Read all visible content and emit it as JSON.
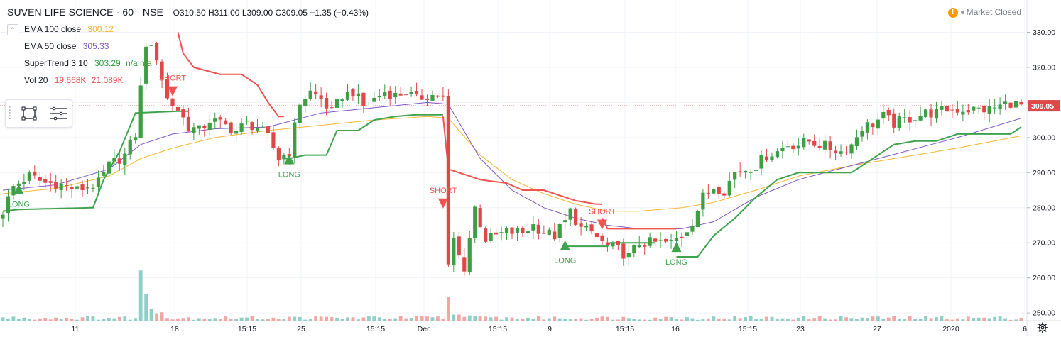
{
  "header": {
    "symbol": "SUVEN LIFE SCIENCE · 60 · NSE",
    "open": "O310.50",
    "high": "H311.00",
    "low": "L309.00",
    "close": "C309.05",
    "change": "−1.35 (−0.43%)",
    "market_status": "Market Closed"
  },
  "indicators": [
    {
      "name": "EMA 100 close",
      "value": "300.12",
      "color": "#f5b632"
    },
    {
      "name": "EMA 50 close",
      "value": "305.33",
      "color": "#7e57c2"
    },
    {
      "name": "SuperTrend 3 10",
      "value": "303.29",
      "extra": "n/a n/a",
      "color": "#2e9e3a"
    },
    {
      "name": "Vol 20",
      "value": "19.668K",
      "value2": "21.089K",
      "color": "#ef5350"
    }
  ],
  "colors": {
    "up": "#26a69a",
    "down": "#ef5350",
    "candle_up": "#3d9e43",
    "candle_down": "#e04848",
    "ema100": "#f5b632",
    "ema50": "#7e57c2",
    "supertrend_long": "#3fa34d",
    "supertrend_short": "#f05350",
    "price_line": "#e04848"
  },
  "chart_data": {
    "type": "candlestick",
    "price_axis": {
      "ticks": [
        "330.00",
        "320.00",
        "310.00",
        "300.00",
        "290.00",
        "280.00",
        "270.00",
        "260.00",
        "250.00"
      ],
      "range": [
        248,
        334
      ]
    },
    "last_price": "309.05",
    "x_ticks": [
      "11",
      "18",
      "15:15",
      "25",
      "15:15",
      "Dec",
      "15:15",
      "9",
      "15:15",
      "16",
      "15:15",
      "23",
      "27",
      "2020",
      "6"
    ],
    "signals": [
      {
        "label": "LONG",
        "type": "long",
        "price": 285.5,
        "bar": 3
      },
      {
        "label": "SHORT",
        "type": "short",
        "price": 313,
        "bar": 32
      },
      {
        "label": "LONG",
        "type": "long",
        "price": 294,
        "bar": 54
      },
      {
        "label": "SHORT",
        "type": "short",
        "price": 281,
        "bar": 83
      },
      {
        "label": "LONG",
        "type": "long",
        "price": 269.5,
        "bar": 106
      },
      {
        "label": "SHORT",
        "type": "short",
        "price": 275,
        "bar": 113
      },
      {
        "label": "LONG",
        "type": "long",
        "price": 269,
        "bar": 127
      }
    ],
    "anchors": {
      "close": [
        [
          0,
          279
        ],
        [
          2,
          286
        ],
        [
          5,
          289
        ],
        [
          8,
          287
        ],
        [
          10,
          287
        ],
        [
          14,
          285
        ],
        [
          18,
          287
        ],
        [
          20,
          292
        ],
        [
          23,
          295
        ],
        [
          25,
          301
        ],
        [
          27,
          327
        ],
        [
          29,
          323
        ],
        [
          31,
          311
        ],
        [
          33,
          308
        ],
        [
          35,
          303
        ],
        [
          37,
          302
        ],
        [
          39,
          305
        ],
        [
          41,
          304
        ],
        [
          44,
          302
        ],
        [
          46,
          304
        ],
        [
          48,
          303
        ],
        [
          50,
          300
        ],
        [
          52,
          294
        ],
        [
          54,
          296
        ],
        [
          56,
          310
        ],
        [
          58,
          313
        ],
        [
          60,
          311
        ],
        [
          62,
          307
        ],
        [
          64,
          312
        ],
        [
          66,
          313
        ],
        [
          68,
          309
        ],
        [
          70,
          311
        ],
        [
          72,
          313
        ],
        [
          74,
          312
        ],
        [
          76,
          313
        ],
        [
          78,
          311
        ],
        [
          80,
          312
        ],
        [
          82,
          312
        ],
        [
          83,
          311
        ],
        [
          84,
          263
        ],
        [
          85,
          271
        ],
        [
          86,
          266
        ],
        [
          87,
          263
        ],
        [
          89,
          280
        ],
        [
          91,
          271
        ],
        [
          95,
          273
        ],
        [
          98,
          273
        ],
        [
          100,
          275
        ],
        [
          102,
          273
        ],
        [
          104,
          272
        ],
        [
          106,
          276
        ],
        [
          107,
          279
        ],
        [
          109,
          274
        ],
        [
          111,
          273
        ],
        [
          113,
          270
        ],
        [
          114,
          269
        ],
        [
          116,
          268
        ],
        [
          118,
          266
        ],
        [
          120,
          270
        ],
        [
          122,
          270
        ],
        [
          124,
          270
        ],
        [
          126,
          270
        ],
        [
          128,
          272
        ],
        [
          130,
          276
        ],
        [
          132,
          283
        ],
        [
          134,
          286
        ],
        [
          136,
          285
        ],
        [
          138,
          290
        ],
        [
          140,
          291
        ],
        [
          142,
          292
        ],
        [
          144,
          295
        ],
        [
          146,
          296
        ],
        [
          148,
          298
        ],
        [
          150,
          298
        ],
        [
          152,
          299
        ],
        [
          154,
          298
        ],
        [
          156,
          297
        ],
        [
          158,
          296
        ],
        [
          160,
          298
        ],
        [
          162,
          303
        ],
        [
          164,
          304
        ],
        [
          166,
          306
        ],
        [
          168,
          304
        ],
        [
          170,
          305
        ],
        [
          172,
          306
        ],
        [
          174,
          307
        ],
        [
          176,
          307
        ],
        [
          178,
          308
        ],
        [
          180,
          308
        ],
        [
          182,
          308
        ],
        [
          184,
          308
        ],
        [
          186,
          308
        ],
        [
          188,
          309
        ],
        [
          190,
          310
        ],
        [
          192,
          309
        ]
      ],
      "ema100": [
        [
          0,
          284
        ],
        [
          10,
          285.5
        ],
        [
          20,
          289
        ],
        [
          26,
          294
        ],
        [
          32,
          297
        ],
        [
          40,
          300
        ],
        [
          50,
          302
        ],
        [
          60,
          303.5
        ],
        [
          70,
          305
        ],
        [
          80,
          306
        ],
        [
          84,
          305.5
        ],
        [
          90,
          295
        ],
        [
          96,
          288
        ],
        [
          102,
          284
        ],
        [
          108,
          281
        ],
        [
          114,
          279
        ],
        [
          120,
          279
        ],
        [
          128,
          280
        ],
        [
          134,
          281.5
        ],
        [
          142,
          285
        ],
        [
          150,
          289
        ],
        [
          160,
          292
        ],
        [
          170,
          294.5
        ],
        [
          180,
          297
        ],
        [
          192,
          300.5
        ]
      ],
      "ema50": [
        [
          0,
          285
        ],
        [
          10,
          286.5
        ],
        [
          20,
          291
        ],
        [
          26,
          298
        ],
        [
          32,
          301
        ],
        [
          40,
          302.5
        ],
        [
          50,
          303
        ],
        [
          60,
          307
        ],
        [
          70,
          308.5
        ],
        [
          80,
          310
        ],
        [
          84,
          309.5
        ],
        [
          90,
          294
        ],
        [
          96,
          285
        ],
        [
          102,
          280
        ],
        [
          108,
          277
        ],
        [
          114,
          275
        ],
        [
          120,
          274
        ],
        [
          128,
          274
        ],
        [
          134,
          276
        ],
        [
          142,
          283
        ],
        [
          150,
          288
        ],
        [
          160,
          292
        ],
        [
          170,
          296
        ],
        [
          180,
          300
        ],
        [
          192,
          305.5
        ]
      ],
      "st_long_1": [
        [
          0,
          279
        ],
        [
          3,
          279.5
        ],
        [
          17,
          280
        ],
        [
          19,
          288
        ],
        [
          22,
          296
        ],
        [
          25,
          307
        ],
        [
          33,
          307.5
        ],
        [
          35,
          307.5
        ]
      ],
      "st_short_1": [
        [
          33,
          330
        ],
        [
          34,
          324
        ],
        [
          36,
          320
        ],
        [
          41,
          318
        ],
        [
          45,
          318
        ],
        [
          48,
          315
        ],
        [
          50,
          310
        ],
        [
          52,
          306
        ],
        [
          53,
          306
        ]
      ],
      "st_long_2": [
        [
          53,
          294
        ],
        [
          54,
          294
        ],
        [
          57,
          295
        ],
        [
          61,
          295
        ],
        [
          63,
          302
        ],
        [
          67,
          302
        ],
        [
          70,
          305
        ],
        [
          74,
          306
        ],
        [
          78,
          306.5
        ],
        [
          83,
          306.5
        ]
      ],
      "st_short_2": [
        [
          83,
          306
        ],
        [
          84,
          291
        ],
        [
          86,
          290
        ],
        [
          90,
          288
        ],
        [
          95,
          287
        ],
        [
          98,
          285
        ],
        [
          102,
          285
        ],
        [
          106,
          283
        ],
        [
          108,
          282
        ],
        [
          112,
          281
        ],
        [
          113,
          281
        ]
      ],
      "st_long_3": [
        [
          106,
          269
        ],
        [
          114,
          269
        ],
        [
          114,
          270
        ],
        [
          120,
          270
        ],
        [
          123,
          270
        ]
      ],
      "st_short_3": [
        [
          113,
          277
        ],
        [
          114,
          274
        ],
        [
          125,
          274
        ],
        [
          127,
          274
        ]
      ],
      "st_long_4": [
        [
          127,
          266
        ],
        [
          131,
          266
        ],
        [
          134,
          272
        ],
        [
          138,
          277
        ],
        [
          142,
          283
        ],
        [
          146,
          288
        ],
        [
          150,
          290
        ],
        [
          155,
          290
        ],
        [
          160,
          290
        ],
        [
          164,
          294
        ],
        [
          168,
          298
        ],
        [
          172,
          299
        ],
        [
          176,
          299
        ],
        [
          180,
          301
        ],
        [
          190,
          301
        ],
        [
          192,
          303
        ]
      ]
    }
  }
}
